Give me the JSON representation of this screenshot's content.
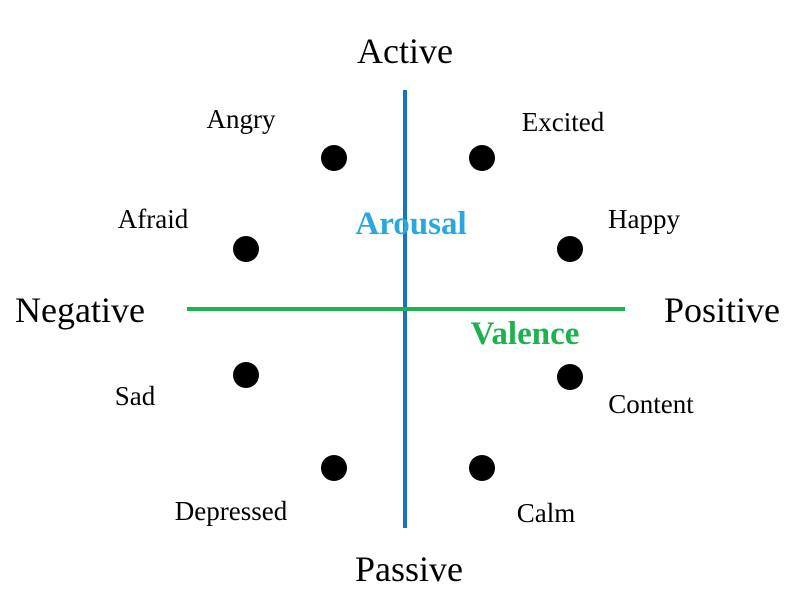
{
  "poles": {
    "top": "Active",
    "bottom": "Passive",
    "left": "Negative",
    "right": "Positive"
  },
  "axes": {
    "vertical_name": "Arousal",
    "horizontal_name": "Valence"
  },
  "emotions": {
    "angry": "Angry",
    "excited": "Excited",
    "afraid": "Afraid",
    "happy": "Happy",
    "sad": "Sad",
    "content": "Content",
    "depressed": "Depressed",
    "calm": "Calm"
  },
  "colors": {
    "arousal_axis": "#1a73c0",
    "arousal_label": "#29a8e0",
    "valence_axis": "#1db24f",
    "valence_label": "#1db24f",
    "dot": "#000000"
  }
}
